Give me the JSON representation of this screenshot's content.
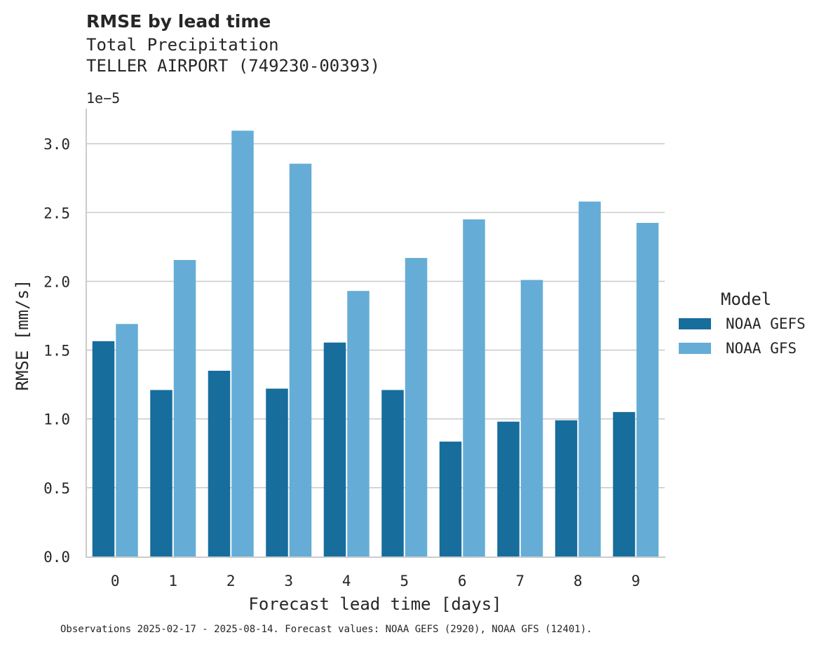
{
  "chart_data": {
    "type": "bar",
    "title": "RMSE by lead time",
    "subtitle": [
      "Total Precipitation",
      "TELLER AIRPORT (749230-00393)"
    ],
    "scale_label": "1e−5",
    "xlabel": "Forecast lead time [days]",
    "ylabel": "RMSE [mm/s]",
    "categories": [
      "0",
      "1",
      "2",
      "3",
      "4",
      "5",
      "6",
      "7",
      "8",
      "9"
    ],
    "series": [
      {
        "name": "NOAA GEFS",
        "color": "#176d9c",
        "values": [
          1.565,
          1.21,
          1.35,
          1.22,
          1.555,
          1.21,
          0.835,
          0.98,
          0.99,
          1.05
        ]
      },
      {
        "name": "NOAA GFS",
        "color": "#65add6",
        "values": [
          1.69,
          2.155,
          3.095,
          2.855,
          1.93,
          2.17,
          2.45,
          2.01,
          2.58,
          2.425
        ]
      }
    ],
    "yticks": [
      "0.0",
      "0.5",
      "1.0",
      "1.5",
      "2.0",
      "2.5",
      "3.0"
    ],
    "ylim": [
      0,
      3.25
    ],
    "grid": true,
    "legend_title": "Model",
    "legend_position": "right",
    "footnote": "Observations 2025-02-17 - 2025-08-14. Forecast values: NOAA GEFS (2920), NOAA GFS (12401)."
  }
}
